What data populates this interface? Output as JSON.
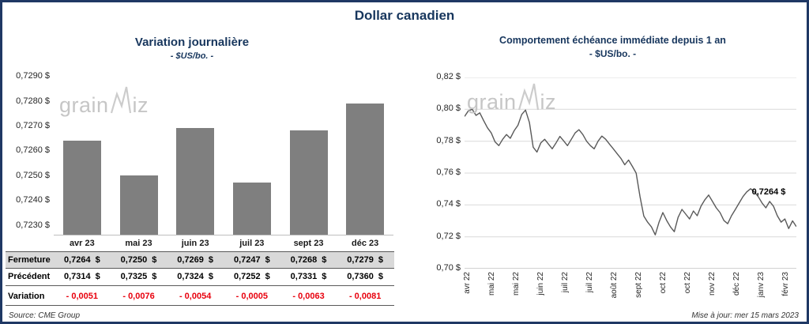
{
  "title": "Dollar canadien",
  "left_chart": {
    "title": "Variation journalière",
    "subtitle": "- $US/bo. -"
  },
  "right_chart": {
    "title": "Comportement échéance immédiate depuis 1 an",
    "subtitle": "- $US/bo. -"
  },
  "watermark": {
    "text": "grainwiz",
    "prefix": "grain",
    "suffix": "iz"
  },
  "table": {
    "rows": [
      {
        "label": "Fermeture",
        "style": "shaded",
        "suffix": "$",
        "values": [
          "0,7264",
          "0,7250",
          "0,7269",
          "0,7247",
          "0,7268",
          "0,7279"
        ]
      },
      {
        "label": "Précédent",
        "style": "plain",
        "suffix": "$",
        "values": [
          "0,7314",
          "0,7325",
          "0,7324",
          "0,7252",
          "0,7331",
          "0,7360"
        ]
      },
      {
        "label": "Variation",
        "style": "negative",
        "suffix": "",
        "values": [
          "- 0,0051",
          "- 0,0076",
          "- 0,0054",
          "- 0,0005",
          "- 0,0063",
          "- 0,0081"
        ]
      }
    ]
  },
  "footer": {
    "source": "Source: CME Group",
    "updated": "Mise à jour: mer 15 mars 2023"
  },
  "colors": {
    "accent": "#17365D",
    "border": "#1F3864",
    "bar": "#7F7F7F",
    "line": "#595959",
    "negative": "#E8000D",
    "shaded_row": "#D9D9D9",
    "grid": "#D9D9D9",
    "watermark": "#C6C6C6"
  },
  "chart_data": [
    {
      "type": "bar",
      "title": "Variation journalière",
      "subtitle": "- $US/bo. -",
      "categories": [
        "avr 23",
        "mai 23",
        "juin 23",
        "juil 23",
        "sept 23",
        "déc 23"
      ],
      "values": [
        0.7264,
        0.725,
        0.7269,
        0.7247,
        0.7268,
        0.7279
      ],
      "ylabel": "$US/bo.",
      "yticks": [
        0.723,
        0.724,
        0.725,
        0.726,
        0.727,
        0.728,
        0.729
      ],
      "ylim": [
        0.7226,
        0.7292
      ],
      "grid": false,
      "bar_color": "#7F7F7F"
    },
    {
      "type": "line",
      "title": "Comportement échéance immédiate depuis 1 an",
      "subtitle": "- $US/bo. -",
      "x_labels": [
        "avr 22",
        "mai 22",
        "mai 22",
        "juin 22",
        "juil 22",
        "juil 22",
        "août 22",
        "sept 22",
        "oct 22",
        "oct 22",
        "nov 22",
        "déc 22",
        "janv 23",
        "févr 23"
      ],
      "values": [
        0.7955,
        0.799,
        0.8,
        0.7962,
        0.7978,
        0.793,
        0.7884,
        0.7852,
        0.7796,
        0.7772,
        0.7812,
        0.7842,
        0.7818,
        0.7866,
        0.79,
        0.7968,
        0.7995,
        0.7918,
        0.7762,
        0.7732,
        0.779,
        0.7812,
        0.7782,
        0.7752,
        0.779,
        0.783,
        0.7802,
        0.7772,
        0.7812,
        0.7852,
        0.7872,
        0.7842,
        0.78,
        0.7772,
        0.7752,
        0.78,
        0.7832,
        0.7812,
        0.7782,
        0.7752,
        0.7722,
        0.7692,
        0.7652,
        0.7682,
        0.7642,
        0.76,
        0.7452,
        0.733,
        0.7292,
        0.7262,
        0.7212,
        0.7292,
        0.7352,
        0.7302,
        0.7262,
        0.7232,
        0.7322,
        0.7372,
        0.7342,
        0.7312,
        0.7362,
        0.7332,
        0.7392,
        0.7432,
        0.7462,
        0.7422,
        0.7382,
        0.7352,
        0.7302,
        0.7282,
        0.7332,
        0.7372,
        0.7412,
        0.7452,
        0.7482,
        0.7502,
        0.7482,
        0.7452,
        0.7412,
        0.7382,
        0.7422,
        0.7392,
        0.7332,
        0.7292,
        0.7312,
        0.7252,
        0.73,
        0.7264
      ],
      "yticks": [
        0.7,
        0.72,
        0.74,
        0.76,
        0.78,
        0.8,
        0.82
      ],
      "ylim": [
        0.7,
        0.82
      ],
      "grid": true,
      "legend": "none",
      "line_color": "#595959",
      "annotation": {
        "text": "0,7264 $",
        "value": 0.7264
      },
      "last_value": 0.7264
    }
  ]
}
